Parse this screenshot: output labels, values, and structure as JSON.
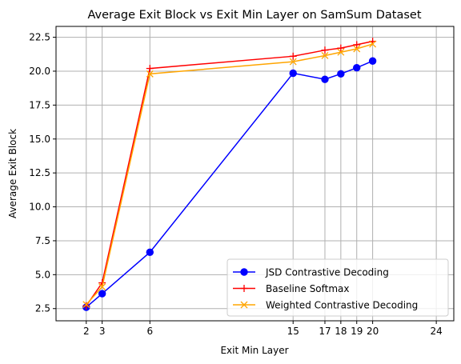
{
  "chart_data": {
    "type": "line",
    "title": "Average Exit Block vs Exit Min Layer on SamSum Dataset",
    "xlabel": "Exit Min Layer",
    "ylabel": "Average Exit Block",
    "x_ticks": [
      2,
      3,
      6,
      15,
      17,
      18,
      19,
      20,
      24
    ],
    "y_ticks": [
      "2.5",
      "5.0",
      "7.5",
      "10.0",
      "12.5",
      "15.0",
      "17.5",
      "20.0",
      "22.5"
    ],
    "xlim": [
      0.1,
      25.1
    ],
    "ylim": [
      1.6,
      23.3
    ],
    "grid": true,
    "legend_position": "lower-right",
    "series": [
      {
        "name": "JSD Contrastive Decoding",
        "color": "#0000ff",
        "marker": "circle",
        "x": [
          2,
          3,
          6,
          15,
          17,
          18,
          19,
          20
        ],
        "y": [
          2.6,
          3.6,
          6.65,
          19.85,
          19.4,
          19.8,
          20.25,
          20.75
        ]
      },
      {
        "name": "Baseline Softmax",
        "color": "#ff0000",
        "marker": "plus",
        "x": [
          2,
          3,
          6,
          15,
          17,
          18,
          19,
          20
        ],
        "y": [
          2.7,
          4.4,
          20.2,
          21.1,
          21.55,
          21.7,
          21.95,
          22.2
        ]
      },
      {
        "name": "Weighted Contrastive Decoding",
        "color": "#ffa500",
        "marker": "x",
        "x": [
          2,
          3,
          6,
          15,
          17,
          18,
          19,
          20
        ],
        "y": [
          2.8,
          4.1,
          19.8,
          20.7,
          21.15,
          21.4,
          21.65,
          22.0
        ]
      }
    ]
  }
}
